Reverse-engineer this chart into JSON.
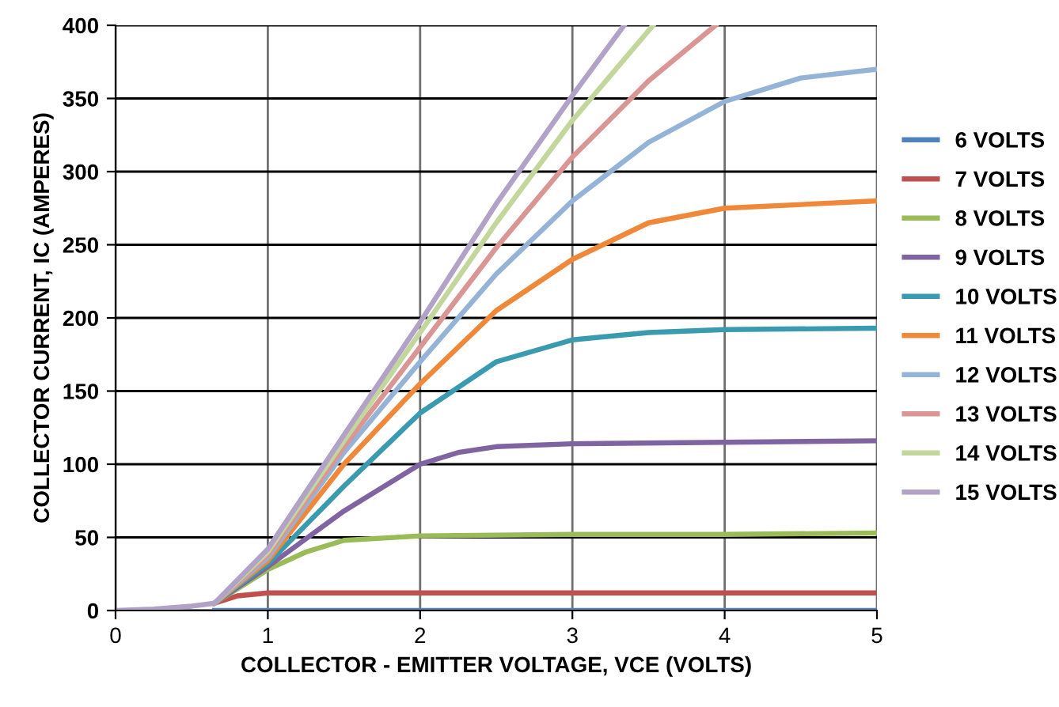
{
  "chart_data": {
    "type": "line",
    "xlabel": "COLLECTOR - EMITTER VOLTAGE, VCE (VOLTS)",
    "ylabel": "COLLECTOR CURRENT, IC (AMPERES)",
    "xlim": [
      0,
      5
    ],
    "xticks": [
      0,
      1,
      2,
      3,
      4,
      5
    ],
    "ylim": [
      0,
      400
    ],
    "yticks": [
      0,
      50,
      100,
      150,
      200,
      250,
      300,
      350,
      400
    ],
    "grid": true,
    "legend": "right",
    "marker": "none",
    "line_style": "solid",
    "series": [
      {
        "name": "6 VOLTS",
        "color": "#4f81bd",
        "x": [
          0.65,
          1,
          2,
          3,
          4,
          5
        ],
        "values": [
          0,
          0,
          0,
          0,
          0,
          0
        ]
      },
      {
        "name": "7 VOLTS",
        "color": "#c0504d",
        "x": [
          0.65,
          0.8,
          1,
          2,
          3,
          4,
          5
        ],
        "values": [
          5,
          10,
          12,
          12,
          12,
          12,
          12
        ]
      },
      {
        "name": "8 VOLTS",
        "color": "#9bbb59",
        "x": [
          0.65,
          1,
          1.25,
          1.5,
          2,
          3,
          4,
          5
        ],
        "values": [
          5,
          28,
          40,
          48,
          51,
          52,
          52,
          53
        ]
      },
      {
        "name": "9 VOLTS",
        "color": "#8064a2",
        "x": [
          0.65,
          1,
          1.5,
          2,
          2.25,
          2.5,
          3,
          4,
          5
        ],
        "values": [
          5,
          30,
          68,
          100,
          108,
          112,
          114,
          115,
          116
        ]
      },
      {
        "name": "10 VOLTS",
        "color": "#3a9bb0",
        "x": [
          0.65,
          1,
          1.5,
          2,
          2.5,
          3,
          3.5,
          4,
          5
        ],
        "values": [
          5,
          32,
          85,
          135,
          170,
          185,
          190,
          192,
          193
        ]
      },
      {
        "name": "11 VOLTS",
        "color": "#f0883a",
        "x": [
          0.65,
          1,
          1.5,
          2,
          2.5,
          3,
          3.5,
          4,
          5
        ],
        "values": [
          5,
          34,
          100,
          155,
          205,
          240,
          265,
          275,
          280
        ]
      },
      {
        "name": "12 VOLTS",
        "color": "#95b3d7",
        "x": [
          0.65,
          1,
          1.5,
          2,
          2.5,
          3,
          3.5,
          4,
          4.5,
          5
        ],
        "values": [
          5,
          36,
          108,
          170,
          230,
          280,
          320,
          348,
          364,
          370
        ]
      },
      {
        "name": "13 VOLTS",
        "color": "#d99694",
        "x": [
          0.65,
          1,
          1.5,
          2,
          2.5,
          3,
          3.5,
          3.94
        ],
        "values": [
          5,
          38,
          112,
          180,
          248,
          310,
          362,
          400
        ]
      },
      {
        "name": "14 VOLTS",
        "color": "#c3d69b",
        "x": [
          0.65,
          1,
          1.5,
          2,
          2.5,
          3,
          3.53
        ],
        "values": [
          5,
          40,
          116,
          190,
          265,
          335,
          400
        ]
      },
      {
        "name": "15 VOLTS",
        "color": "#b3a2c7",
        "x": [
          0,
          0.25,
          0.5,
          0.65,
          1,
          1.5,
          2,
          2.5,
          3,
          3.34
        ],
        "values": [
          0,
          1,
          3,
          5,
          42,
          120,
          197,
          278,
          352,
          400
        ]
      }
    ]
  }
}
